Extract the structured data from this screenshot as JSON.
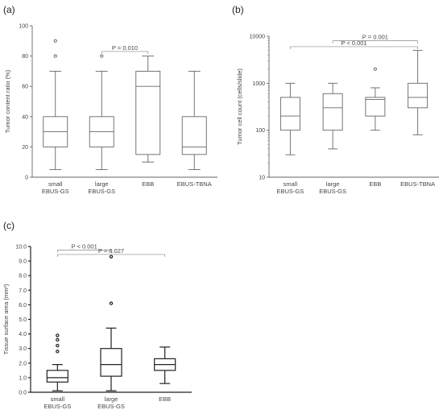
{
  "panels": [
    "(a)",
    "(b)",
    "(c)"
  ],
  "chart_data": [
    {
      "panel": "(a)",
      "type": "box",
      "ylabel": "Tumor content ratio (%)",
      "ylim": [
        0,
        100
      ],
      "yticks": [
        "0",
        "20",
        "40",
        "60",
        "80",
        "100"
      ],
      "categories": [
        [
          "small",
          "EBUS-GS"
        ],
        [
          "large",
          "EBUS-GS"
        ],
        [
          "EBB"
        ],
        [
          "EBUS-TBNA"
        ]
      ],
      "boxes": [
        {
          "min": 5,
          "q1": 20,
          "median": 30,
          "q3": 40,
          "max": 70,
          "outliers": [
            80,
            90
          ]
        },
        {
          "min": 5,
          "q1": 20,
          "median": 30,
          "q3": 40,
          "max": 70,
          "outliers": [
            80
          ]
        },
        {
          "min": 10,
          "q1": 15,
          "median": 60,
          "q3": 70,
          "max": 80,
          "outliers": []
        },
        {
          "min": 5,
          "q1": 15,
          "median": 20,
          "q3": 40,
          "max": 70,
          "outliers": []
        }
      ],
      "annotations": [
        {
          "label": "P = 0.010",
          "from": 1,
          "to": 2,
          "y": 83
        }
      ]
    },
    {
      "panel": "(b)",
      "type": "box",
      "yscale": "log",
      "ylabel": "Tumor cell count (cells/slide)",
      "ylim": [
        10,
        10000
      ],
      "yticks": [
        "10",
        "100",
        "1000",
        "10000"
      ],
      "categories": [
        [
          "small",
          "EBUS-GS"
        ],
        [
          "large",
          "EBUS-GS"
        ],
        [
          "EBB"
        ],
        [
          "EBUS-TBNA"
        ]
      ],
      "boxes": [
        {
          "min": 30,
          "q1": 100,
          "median": 200,
          "q3": 500,
          "max": 1000,
          "outliers": []
        },
        {
          "min": 40,
          "q1": 100,
          "median": 300,
          "q3": 600,
          "max": 1000,
          "outliers": []
        },
        {
          "min": 100,
          "q1": 200,
          "median": 450,
          "q3": 500,
          "max": 800,
          "outliers": [
            2000
          ]
        },
        {
          "min": 80,
          "q1": 300,
          "median": 500,
          "q3": 1000,
          "max": 5000,
          "outliers": []
        }
      ],
      "annotations": [
        {
          "label": "P = 0.001",
          "from": 1,
          "to": 3,
          "y": 8000
        },
        {
          "label": "P < 0.001",
          "from": 0,
          "to": 3,
          "y": 6000
        }
      ]
    },
    {
      "panel": "(c)",
      "type": "box",
      "ylabel": "Tissue surface area (mm²)",
      "ylim": [
        0,
        10
      ],
      "yticks": [
        "0.0",
        "1.0",
        "2.0",
        "3.0",
        "4.0",
        "5.0",
        "6.0",
        "7.0",
        "8.0",
        "9.0",
        "10.0"
      ],
      "categories": [
        [
          "small",
          "EBUS-GS"
        ],
        [
          "large",
          "EBUS-GS"
        ],
        [
          "EBB"
        ]
      ],
      "boxes": [
        {
          "min": 0.1,
          "q1": 0.7,
          "median": 1.0,
          "q3": 1.5,
          "max": 1.9,
          "outliers": [
            2.8,
            3.2,
            3.6,
            3.9
          ]
        },
        {
          "min": 0.1,
          "q1": 1.1,
          "median": 1.9,
          "q3": 3.0,
          "max": 4.4,
          "outliers": [
            6.1,
            9.3
          ]
        },
        {
          "min": 0.6,
          "q1": 1.5,
          "median": 1.9,
          "q3": 2.3,
          "max": 3.1,
          "outliers": []
        }
      ],
      "annotations": [
        {
          "label": "P < 0.001",
          "from": 0,
          "to": 1,
          "y": 9.75
        },
        {
          "label": "P = 0.027",
          "from": 0,
          "to": 2,
          "y": 9.45
        }
      ]
    }
  ]
}
